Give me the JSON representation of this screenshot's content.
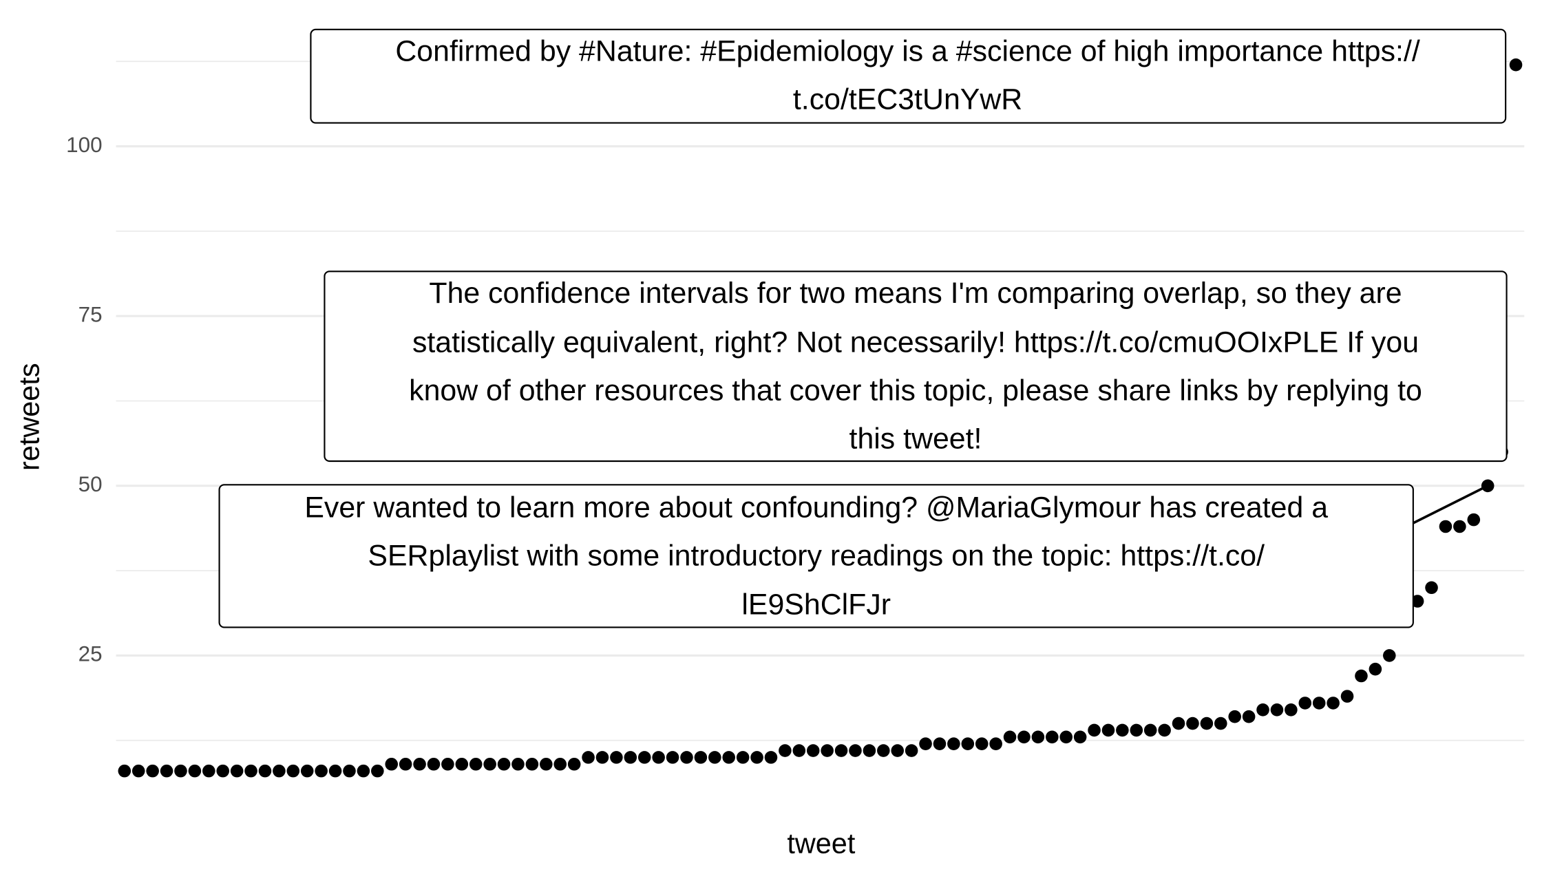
{
  "chart_data": {
    "type": "scatter",
    "x_label": "tweet",
    "y_label": "retweets",
    "values": [
      8,
      8,
      8,
      8,
      8,
      8,
      8,
      8,
      8,
      8,
      8,
      8,
      8,
      8,
      8,
      8,
      8,
      8,
      8,
      9,
      9,
      9,
      9,
      9,
      9,
      9,
      9,
      9,
      9,
      9,
      9,
      9,
      9,
      10,
      10,
      10,
      10,
      10,
      10,
      10,
      10,
      10,
      10,
      10,
      10,
      10,
      10,
      11,
      11,
      11,
      11,
      11,
      11,
      11,
      11,
      11,
      11,
      12,
      12,
      12,
      12,
      12,
      12,
      13,
      13,
      13,
      13,
      13,
      13,
      14,
      14,
      14,
      14,
      14,
      14,
      15,
      15,
      15,
      15,
      16,
      16,
      17,
      17,
      17,
      18,
      18,
      18,
      19,
      22,
      23,
      25,
      30,
      33,
      35,
      44,
      44,
      45,
      50,
      55,
      112
    ],
    "color": "#000000",
    "ylim": [
      2.8,
      117.2
    ],
    "yticks": [
      25,
      50,
      75,
      100
    ],
    "grid": true,
    "annotations": [
      {
        "lines": [
          "Confirmed by #Nature: #Epidemiology is a #science of high importance https://",
          "t.co/tEC3tUnYwR"
        ]
      },
      {
        "lines": [
          "The confidence intervals for two means I'm comparing overlap, so they are",
          "statistically equivalent, right? Not necessarily! https://t.co/cmuOOIxPLE If you",
          "know of other resources that cover this topic, please share links by replying to",
          "this tweet!"
        ]
      },
      {
        "lines": [
          "Ever wanted to learn more about confounding? @MariaGlymour has created a",
          "SERplaylist with some introductory readings on the topic: https://t.co/",
          "lE9ShClFJr"
        ]
      }
    ]
  }
}
